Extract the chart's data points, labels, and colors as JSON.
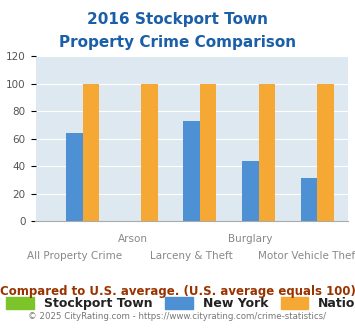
{
  "title_line1": "2016 Stockport Town",
  "title_line2": "Property Crime Comparison",
  "groups": [
    "All Property Crime",
    "Arson",
    "Larceny & Theft",
    "Burglary",
    "Motor Vehicle Theft"
  ],
  "stockport_town": [
    0,
    0,
    0,
    0,
    0
  ],
  "new_york": [
    64,
    0,
    73,
    44,
    31
  ],
  "national": [
    100,
    100,
    100,
    100,
    100
  ],
  "colors": {
    "stockport_town": "#7dc42a",
    "new_york": "#4d90d4",
    "national": "#f5a833"
  },
  "ylim": [
    0,
    120
  ],
  "yticks": [
    0,
    20,
    40,
    60,
    80,
    100,
    120
  ],
  "plot_bg": "#dde8f0",
  "title_color": "#1a5fa8",
  "legend_label_color": "#222222",
  "footer_text": "Compared to U.S. average. (U.S. average equals 100)",
  "copyright_text": "© 2025 CityRating.com - https://www.cityrating.com/crime-statistics/",
  "footer_color": "#993300",
  "copyright_color": "#777777",
  "bar_width": 0.28,
  "x_label_color": "#888888",
  "top_labels": [
    "",
    "Arson",
    "",
    "Burglary",
    ""
  ],
  "bottom_labels": [
    "All Property Crime",
    "",
    "Larceny & Theft",
    "",
    "Motor Vehicle Theft"
  ]
}
